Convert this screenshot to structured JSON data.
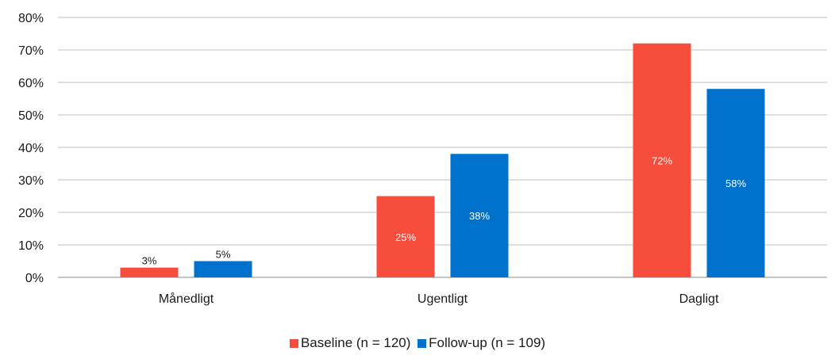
{
  "chart_data": {
    "type": "bar",
    "categories": [
      "Månedligt",
      "Ugentligt",
      "Dagligt"
    ],
    "series": [
      {
        "name": "Baseline (n = 120)",
        "values": [
          3,
          25,
          72
        ],
        "labels": [
          "3%",
          "25%",
          "72%"
        ],
        "color": "#f64d3c"
      },
      {
        "name": "Follow-up (n = 109)",
        "values": [
          5,
          38,
          58
        ],
        "labels": [
          "5%",
          "38%",
          "58%"
        ],
        "color": "#0072ce"
      }
    ],
    "y_ticks": [
      "0%",
      "10%",
      "20%",
      "30%",
      "40%",
      "50%",
      "60%",
      "70%",
      "80%"
    ],
    "ylim": [
      0,
      80
    ],
    "grid": true,
    "gridline_color": "#bfbfbf",
    "legend_position": "bottom",
    "title": "",
    "xlabel": "",
    "ylabel": ""
  }
}
